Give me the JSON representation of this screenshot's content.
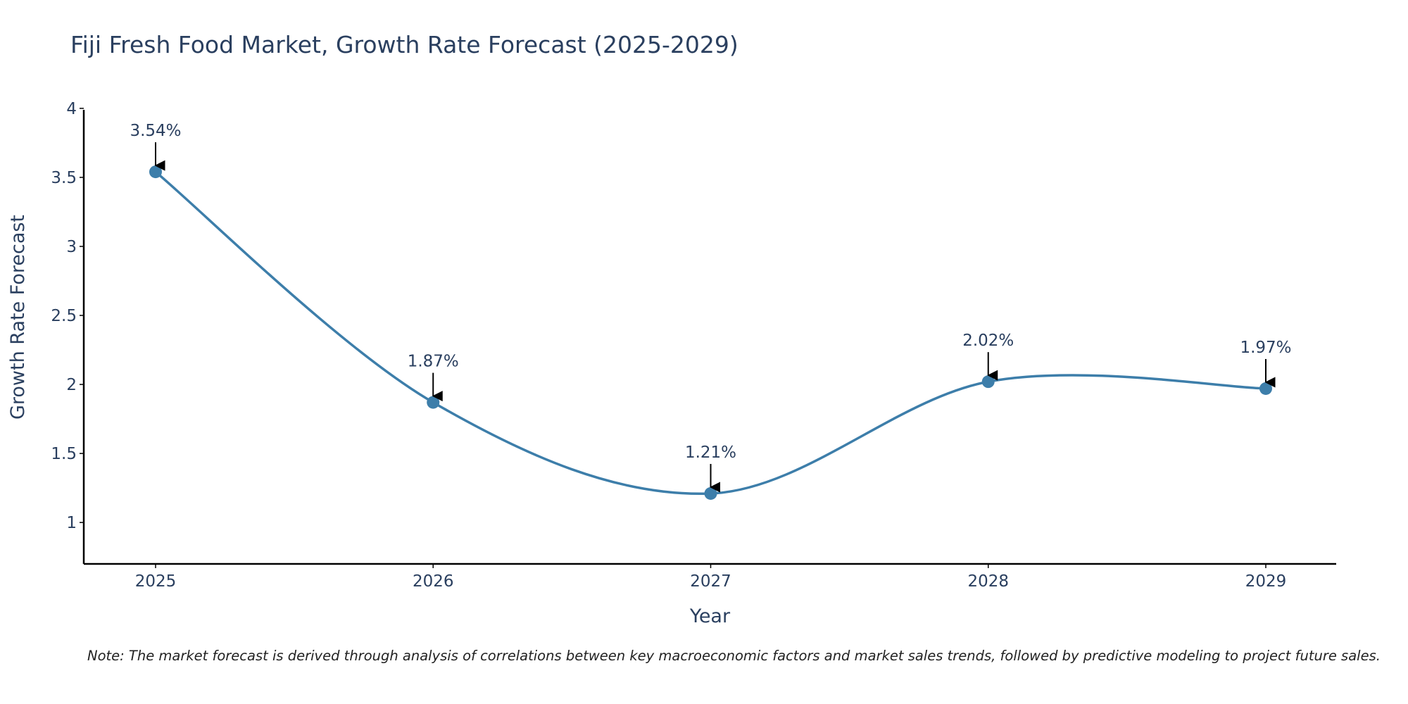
{
  "chart_data": {
    "type": "line",
    "title": "Fiji Fresh Food Market, Growth Rate Forecast (2025-2029)",
    "xlabel": "Year",
    "ylabel": "Growth Rate Forecast",
    "categories": [
      "2025",
      "2026",
      "2027",
      "2028",
      "2029"
    ],
    "series": [
      {
        "name": "Growth Rate Forecast",
        "values": [
          3.54,
          1.87,
          1.21,
          2.02,
          1.97
        ],
        "labels": [
          "3.54%",
          "1.87%",
          "1.21%",
          "2.02%",
          "1.97%"
        ]
      }
    ],
    "yticks": [
      "1",
      "1.5",
      "2",
      "2.5",
      "3",
      "3.5",
      "4"
    ],
    "ylim": [
      0.7,
      4.02
    ],
    "grid": false,
    "line_color": "#3d7eaa",
    "marker_color": "#3d7eaa",
    "note": "Note: The market forecast is derived through analysis of correlations between key macroeconomic factors and market sales trends, followed by predictive modeling to project future sales."
  }
}
